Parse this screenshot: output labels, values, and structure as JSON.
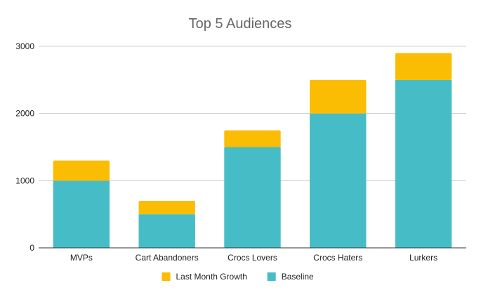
{
  "chart_data": {
    "type": "bar",
    "stacked": true,
    "title": "Top 5 Audiences",
    "xlabel": "",
    "ylabel": "",
    "categories": [
      "MVPs",
      "Cart Abandoners",
      "Crocs Lovers",
      "Crocs Haters",
      "Lurkers"
    ],
    "series": [
      {
        "name": "Baseline",
        "color": "#46BDC6",
        "values": [
          1000,
          500,
          1500,
          2000,
          2500
        ]
      },
      {
        "name": "Last Month Growth",
        "color": "#FBBC04",
        "values": [
          300,
          200,
          250,
          500,
          400
        ]
      }
    ],
    "legend_order": [
      "Last Month Growth",
      "Baseline"
    ],
    "legend_position": "bottom",
    "ylim": [
      0,
      3000
    ],
    "yticks": [
      0,
      1000,
      2000,
      3000
    ],
    "grid": true
  }
}
